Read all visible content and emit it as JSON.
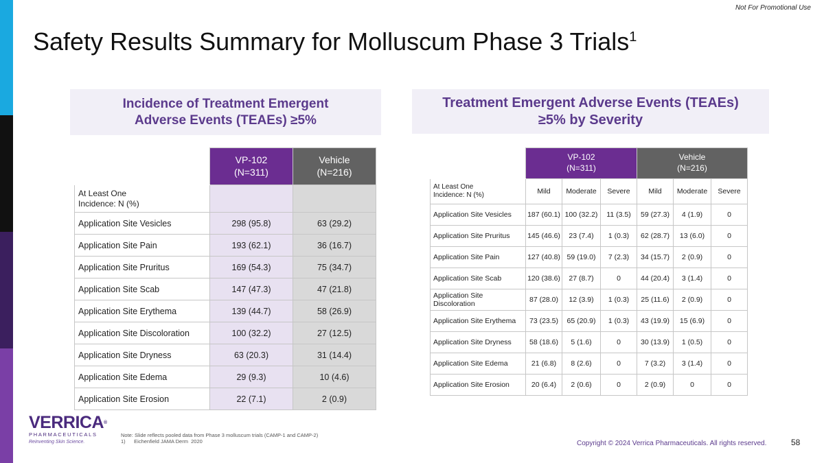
{
  "disclaimer": "Not For Promotional Use",
  "title": "Safety Results Summary for Molluscum Phase 3 Trials",
  "title_sup": "1",
  "left_panel": {
    "heading_line1": "Incidence of Treatment Emergent",
    "heading_line2": "Adverse Events (TEAEs) ≥5%",
    "col_vp_name": "VP-102",
    "col_vp_n": "(N=311)",
    "col_vehicle_name": "Vehicle",
    "col_vehicle_n": "(N=216)",
    "subheader_line1": "At Least One",
    "subheader_line2": "Incidence: N (%)",
    "rows": [
      {
        "label": "Application Site Vesicles",
        "vp": "298 (95.8)",
        "vehicle": "63 (29.2)"
      },
      {
        "label": "Application Site Pain",
        "vp": "193 (62.1)",
        "vehicle": "36 (16.7)"
      },
      {
        "label": "Application Site Pruritus",
        "vp": "169 (54.3)",
        "vehicle": "75 (34.7)"
      },
      {
        "label": "Application Site Scab",
        "vp": "147 (47.3)",
        "vehicle": "47 (21.8)"
      },
      {
        "label": "Application Site Erythema",
        "vp": "139 (44.7)",
        "vehicle": "58 (26.9)"
      },
      {
        "label": "Application Site Discoloration",
        "vp": "100 (32.2)",
        "vehicle": "27 (12.5)"
      },
      {
        "label": "Application Site Dryness",
        "vp": "63 (20.3)",
        "vehicle": "31 (14.4)"
      },
      {
        "label": "Application Site Edema",
        "vp": "29 (9.3)",
        "vehicle": "10 (4.6)"
      },
      {
        "label": "Application Site Erosion",
        "vp": "22 (7.1)",
        "vehicle": "2 (0.9)"
      }
    ]
  },
  "right_panel": {
    "heading_line1": "Treatment Emergent Adverse Events (TEAEs)",
    "heading_line2": "≥5% by Severity",
    "col_vp_name": "VP-102",
    "col_vp_n": "(N=311)",
    "col_vehicle_name": "Vehicle",
    "col_vehicle_n": "(N=216)",
    "subheader_line1": "At Least One",
    "subheader_line2": "Incidence: N (%)",
    "severity_labels": [
      "Mild",
      "Moderate",
      "Severe",
      "Mild",
      "Moderate",
      "Severe"
    ],
    "rows": [
      {
        "label": "Application Site Vesicles",
        "values": [
          "187 (60.1)",
          "100 (32.2)",
          "11 (3.5)",
          "59 (27.3)",
          "4 (1.9)",
          "0"
        ]
      },
      {
        "label": "Application Site Pruritus",
        "values": [
          "145 (46.6)",
          "23 (7.4)",
          "1 (0.3)",
          "62 (28.7)",
          "13 (6.0)",
          "0"
        ]
      },
      {
        "label": "Application Site Pain",
        "values": [
          "127 (40.8)",
          "59 (19.0)",
          "7 (2.3)",
          "34 (15.7)",
          "2 (0.9)",
          "0"
        ]
      },
      {
        "label": "Application Site Scab",
        "values": [
          "120 (38.6)",
          "27 (8.7)",
          "0",
          "44 (20.4)",
          "3 (1.4)",
          "0"
        ]
      },
      {
        "label": "Application Site Discoloration",
        "values": [
          "87 (28.0)",
          "12 (3.9)",
          "1 (0.3)",
          "25 (11.6)",
          "2 (0.9)",
          "0"
        ]
      },
      {
        "label": "Application Site Erythema",
        "values": [
          "73 (23.5)",
          "65 (20.9)",
          "1 (0.3)",
          "43 (19.9)",
          "15 (6.9)",
          "0"
        ]
      },
      {
        "label": "Application Site Dryness",
        "values": [
          "58 (18.6)",
          "5 (1.6)",
          "0",
          "30 (13.9)",
          "1 (0.5)",
          "0"
        ]
      },
      {
        "label": "Application Site Edema",
        "values": [
          "21 (6.8)",
          "8 (2.6)",
          "0",
          "7 (3.2)",
          "3 (1.4)",
          "0"
        ]
      },
      {
        "label": "Application Site Erosion",
        "values": [
          "20 (6.4)",
          "2 (0.6)",
          "0",
          "2 (0.9)",
          "0",
          "0"
        ]
      }
    ]
  },
  "logo": {
    "brand": "VERRICA",
    "trademark": "®",
    "subtitle": "PHARMACEUTICALS",
    "tagline": "Reinventing Skin Science."
  },
  "footnotes": {
    "note": "Note: Slide reflects pooled data from Phase 3 molluscum trials (CAMP-1 and CAMP-2)",
    "ref1": "1)      Eichenfield JAMA Derm  2020"
  },
  "copyright": "Copyright © 2024 Verrica Pharmaceuticals. All rights reserved.",
  "page_number": "58",
  "colors": {
    "purple_accent": "#6b2d91",
    "vehicle_gray": "#626262",
    "heading_purple": "#5b3a8c",
    "sidebar": [
      "#1aa9e0",
      "#111111",
      "#3b1f5e",
      "#7a3fa6"
    ]
  }
}
